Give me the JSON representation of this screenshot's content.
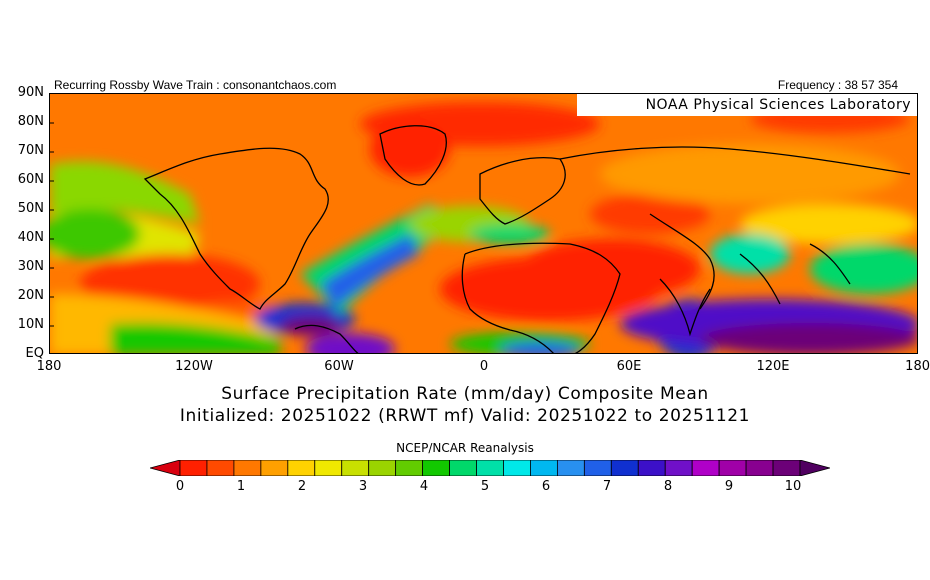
{
  "header": {
    "left": "Recurring Rossby Wave Train : consonantchaos.com",
    "right": "Frequency : 38 57 354"
  },
  "map": {
    "lab_label": "NOAA Physical Sciences Laboratory",
    "lat_labels": [
      "90N",
      "80N",
      "70N",
      "60N",
      "50N",
      "40N",
      "30N",
      "20N",
      "10N",
      "EQ"
    ],
    "lon_labels": [
      "180",
      "120W",
      "60W",
      "0",
      "60E",
      "120E",
      "180"
    ],
    "icon": "world-map-icon"
  },
  "titles": {
    "line1": "Surface Precipitation Rate (mm/day) Composite Mean",
    "line2": "Initialized: 20251022 (RRWT mf) Valid: 20251022 to 20251121"
  },
  "source": "NCEP/NCAR Reanalysis",
  "colorbar": {
    "labels": [
      "0",
      "1",
      "2",
      "3",
      "4",
      "5",
      "6",
      "7",
      "8",
      "9",
      "10"
    ],
    "colors": [
      "#d8000f",
      "#ff2000",
      "#ff4a00",
      "#ff7800",
      "#ffa000",
      "#ffd200",
      "#f0e800",
      "#c8e000",
      "#9ad400",
      "#62cc00",
      "#12c800",
      "#00d86a",
      "#00e0a8",
      "#00e8e8",
      "#00b8f0",
      "#2890f0",
      "#2060e8",
      "#1030d0",
      "#3c10c8",
      "#7010c8",
      "#b000c8",
      "#a000a8",
      "#880090",
      "#6c0078",
      "#500060"
    ]
  }
}
